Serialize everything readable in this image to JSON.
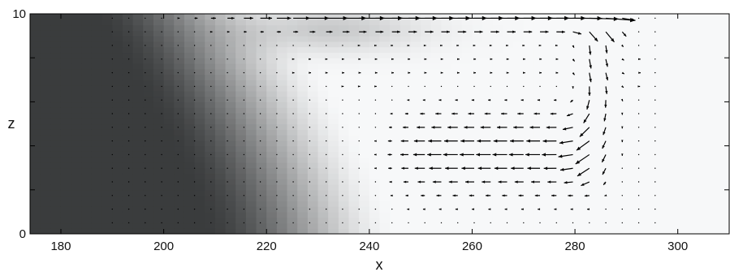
{
  "chart_data": {
    "type": "heatmap",
    "subtype": "vector-field-over-scalar-field",
    "xlabel": "x",
    "ylabel": "z",
    "xlim": [
      174,
      310
    ],
    "ylim": [
      0,
      10
    ],
    "x_ticks": [
      180,
      200,
      220,
      240,
      260,
      280,
      300
    ],
    "y_ticks": [
      0,
      2,
      4,
      6,
      8,
      10
    ],
    "x_tick_labels": [
      "180",
      "200",
      "220",
      "240",
      "260",
      "280",
      "300"
    ],
    "y_tick_labels": [
      "0",
      "",
      "",
      "",
      "",
      "10"
    ],
    "colormap": "gray",
    "colors": {
      "dark": "#3a3c3d",
      "light": "#f7f8f9",
      "arrow": "#000000",
      "axis": "#000000"
    },
    "scalar_field": {
      "description_free": true,
      "dark_region_x_max_at_bottom": 212,
      "dark_region_x_max_at_top": 190,
      "brightest_near": [
        265,
        4
      ]
    },
    "vector_field": {
      "x_grid": [
        190,
        297,
        3.2
      ],
      "z_grid": [
        0.5,
        9.8,
        0.62
      ],
      "top_jet": {
        "z": 9.8,
        "x_range": [
          250,
          292
        ],
        "max_length": 3.6
      },
      "return_flow": {
        "z_range": [
          2,
          6
        ],
        "x_range": [
          245,
          286
        ],
        "direction": "toward -x"
      },
      "downflow": {
        "x": 285,
        "z_range": [
          2,
          9.5
        ],
        "direction": "downward"
      }
    }
  }
}
